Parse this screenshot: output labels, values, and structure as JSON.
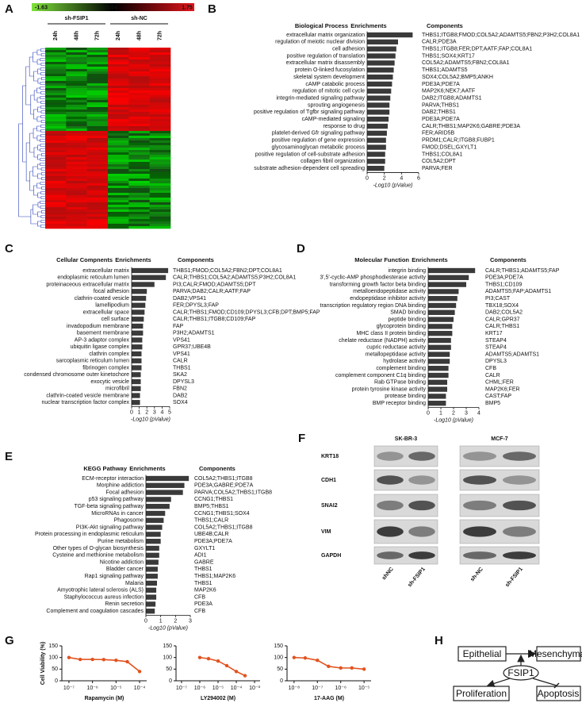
{
  "panel_labels": [
    "A",
    "B",
    "C",
    "D",
    "E",
    "F",
    "G",
    "H"
  ],
  "heatmap": {
    "colorbar_ticks": [
      -1.63,
      0.04,
      1.75
    ],
    "groups": [
      "sh-FSIP1",
      "sh-NC"
    ],
    "timepoints": [
      "24h",
      "48h",
      "72h",
      "24h",
      "48h",
      "72h"
    ]
  },
  "chart_data": [
    {
      "type": "bar",
      "orientation": "horizontal",
      "category_label": "Biological Process",
      "value_label": "Enrichments",
      "components_label": "Components",
      "color": "#3a3a3a",
      "categories": [
        "extracellular matrix organization",
        "regulation of meiotic nuclear division",
        "cell adhesion",
        "positive regulation of translation",
        "extracellular matrix disassembly",
        "protein O-linked fucosylation",
        "skeletal system development",
        "cAMP catabolic process",
        "regulation of mitotic cell cycle",
        "integrin-mediated signaling pathway",
        "sprouting angiogenesis",
        "positive regulation of Tgfbr signaling pathway",
        "cAMP-mediated signaling",
        "response to drug",
        "platelet-derived Gfr signaling pathway",
        "positive regulation of gene expression",
        "glycosaminoglycan metabolic process",
        "positive regulation of cell-substrate adhesion",
        "collagen fibril organization",
        "substrate adhesion-dependent cell spreading"
      ],
      "values": [
        5.3,
        3.6,
        3.4,
        3.3,
        3.2,
        3.1,
        3.0,
        2.9,
        2.8,
        2.7,
        2.6,
        2.6,
        2.5,
        2.4,
        2.3,
        2.2,
        2.2,
        2.1,
        2.1,
        2.0
      ],
      "components": [
        "THBS1;ITGB8;FMOD;COL5A2;ADAMTS5;FBN2;P3H2;COL8A1",
        "CALR;PDE3A",
        "THBS1;ITGB8;FER;DPT;AATF;FAP;COL8A1",
        "THBS1;SOX4;KRT17",
        "COL5A2;ADAMTS5;FBN2;COL8A1",
        "THBS1;ADAMTS5",
        "SOX4;COL5A2;BMP5;ANKH",
        "PDE3A;PDE7A",
        "MAP2K6;NEK7;AATF",
        "DAB2;ITGB8;ADAMTS1",
        "PARVA;THBS1",
        "DAB2;THBS1",
        "PDE3A;PDE7A",
        "CALR;THBS1;MAP2K6;GABRE;PDE3A",
        "FER;ARID5B",
        "PRDM1;CALR;ITGB8;FUBP1",
        "FMOD;DSEL;GXYLT1",
        "THBS1;COL8A1",
        "COL5A2;DPT",
        "PARVA;FER"
      ],
      "xlim": [
        0,
        6
      ],
      "xticks": [
        0,
        2,
        4,
        6
      ],
      "xlabel": "-Log10 (pValue)"
    },
    {
      "type": "bar",
      "orientation": "horizontal",
      "category_label": "Cellular Compnents",
      "value_label": "Enrichments",
      "components_label": "Components",
      "color": "#3a3a3a",
      "categories": [
        "extracellular matrix",
        "endoplasmic reticulum lumen",
        "proteinaceous extracellular matrix",
        "focal adhesion",
        "clathrin-coated vesicle",
        "lamellipodium",
        "extracellular space",
        "cell surface",
        "invadopodium membrane",
        "basement membrane",
        "AP-3 adaptor complex",
        "ubiquitin ligase complex",
        "clathrin complex",
        "sarcoplasmic reticulum lumen",
        "fibrinogen complex",
        "condensed chromosome outer kinetochore",
        "exocytic vesicle",
        "microfibril",
        "clathrin-coated vesicle membrane",
        "nuclear transcription factor complex"
      ],
      "values": [
        4.8,
        4.5,
        3.0,
        2.0,
        1.9,
        1.8,
        1.7,
        1.6,
        1.5,
        1.5,
        1.4,
        1.4,
        1.3,
        1.3,
        1.3,
        1.2,
        1.2,
        1.2,
        1.1,
        1.1
      ],
      "components": [
        "THBS1;FMOD;COL5A2;FBN2;DPT;COL8A1",
        "CALR;THBS1;COL5A2;ADAMTS5;P3H2;COL8A1",
        "PI3;CALR;FMOD;ADAMTS5;DPT",
        "PARVA;DAB2;CALR;AATF;FAP",
        "DAB2;VPS41",
        "FER;DPYSL3;FAP",
        "CALR;THBS1;FMOD;CD109;DPYSL3;CFB;DPT;BMP5;FAP",
        "CALR;THBS1;ITGB8;CD109;FAP",
        "FAP",
        "P3H2;ADAMTS1",
        "VPS41",
        "GPR37;UBE4B",
        "VPS41",
        "CALR",
        "THBS1",
        "SKA2",
        "DPYSL3",
        "FBN2",
        "DAB2",
        "SOX4"
      ],
      "xlim": [
        0,
        5
      ],
      "xticks": [
        0,
        1,
        2,
        3,
        4,
        5
      ],
      "xlabel": "-Log10 (pValue)"
    },
    {
      "type": "bar",
      "orientation": "horizontal",
      "category_label": "Molecular Function",
      "value_label": "Enrichments",
      "components_label": "Components",
      "color": "#3a3a3a",
      "categories": [
        "integrin binding",
        "3',5'-cyclic-AMP phosphodiesterase activity",
        "transforming growth factor beta binding",
        "metalloendopeptidase activity",
        "endopeptidase inhibitor activity",
        "transcription regulatory region DNA binding",
        "SMAD binding",
        "peptide binding",
        "glycoprotein binding",
        "MHC class II protein binding",
        "chelate reductase (NADPH) activity",
        "cupric reductase activity",
        "metallopeptidase activity",
        "hydrolase activity",
        "complement binding",
        "complement component C1q binding",
        "Rab GTPase binding",
        "protein tyrosine kinase activity",
        "protease binding",
        "BMP receptor binding"
      ],
      "values": [
        3.7,
        3.2,
        3.0,
        2.4,
        2.3,
        2.2,
        2.1,
        2.0,
        1.9,
        1.9,
        1.8,
        1.8,
        1.7,
        1.7,
        1.6,
        1.6,
        1.5,
        1.5,
        1.4,
        1.4
      ],
      "components": [
        "CALR;THBS1;ADAMTS5;FAP",
        "PDE3A;PDE7A",
        "THBS1;CD109",
        "ADAMTS5;FAP;ADAMTS1",
        "PI3;CAST",
        "TBX18;SOX4",
        "DAB2;COL5A2",
        "CALR;GPR37",
        "CALR;THBS1",
        "KRT17",
        "STEAP4",
        "STEAP4",
        "ADAMTS5;ADAMTS1",
        "DPYSL3",
        "CFB",
        "CALR",
        "CHML;FER",
        "MAP2K6;FER",
        "CAST;FAP",
        "BMP5"
      ],
      "xlim": [
        0,
        4
      ],
      "xticks": [
        0,
        1,
        2,
        3,
        4
      ],
      "xlabel": "-Log10 (pValue)"
    },
    {
      "type": "bar",
      "orientation": "horizontal",
      "category_label": "KEGG Pathway",
      "value_label": "Enrichments",
      "components_label": "Components",
      "color": "#3a3a3a",
      "categories": [
        "ECM-receptor interaction",
        "Morphine addiction",
        "Focal adhesion",
        "p53 signaling pathway",
        "TGF-beta signaling pathway",
        "MicroRNAs in cancer",
        "Phagosome",
        "PI3K-Akt signaling pathway",
        "Protein processing in endoplasmic reticulum",
        "Purine metabolism",
        "Other types of O-glycan biosynthesis",
        "Cysteine and methionine metabolism",
        "Nicotine addiction",
        "Bladder cancer",
        "Rap1 signaling pathway",
        "Malaria",
        "Amyotrophic lateral sclerosis (ALS)",
        "Staphylococcus aureus infection",
        "Renin secretion",
        "Complement and coagulation cascades"
      ],
      "values": [
        2.9,
        2.6,
        2.5,
        1.7,
        1.6,
        1.3,
        1.2,
        1.1,
        1.0,
        1.0,
        0.9,
        0.9,
        0.85,
        0.8,
        0.8,
        0.75,
        0.7,
        0.7,
        0.65,
        0.6
      ],
      "components": [
        "COL5A2;THBS1;ITGB8",
        "PDE3A;GABRE;PDE7A",
        "PARVA;COL5A2;THBS1;ITGB8",
        "CCNG1;THBS1",
        "BMP5;THBS1",
        "CCNG1;THBS1;SOX4",
        "THBS1;CALR",
        "COL5A2;THBS1;ITGB8",
        "UBE4B;CALR",
        "PDE3A;PDE7A",
        "GXYLT1",
        "ADI1",
        "GABRE",
        "THBS1",
        "THBS1;MAP2K6",
        "THBS1",
        "MAP2K6",
        "CFB",
        "PDE3A",
        "CFB"
      ],
      "xlim": [
        0,
        3
      ],
      "xticks": [
        0,
        1,
        2,
        3
      ],
      "xlabel": "-Log10 (pValue)"
    },
    {
      "type": "scatter",
      "log_x": true,
      "color": "#e2531f",
      "ylabel": "Cell Viability (%)",
      "xlabel": "Rapamycin (M)",
      "x": [
        1e-07,
        3e-07,
        1e-06,
        3e-06,
        1e-05,
        3e-05,
        0.0001
      ],
      "values": [
        100,
        92,
        92,
        91,
        88,
        82,
        40
      ],
      "xlim": [
        5e-08,
        0.0002
      ],
      "xticks": [
        {
          "value": 1e-07,
          "label": "10⁻⁷"
        },
        {
          "value": 1e-06,
          "label": "10⁻⁶"
        },
        {
          "value": 1e-05,
          "label": "10⁻⁵"
        },
        {
          "value": 0.0001,
          "label": "10⁻⁴"
        }
      ],
      "ylim": [
        0,
        150
      ],
      "yticks": [
        0,
        50,
        100,
        150
      ]
    },
    {
      "type": "scatter",
      "log_x": true,
      "color": "#e2531f",
      "xlabel": "LY294002 (M)",
      "x": [
        1e-06,
        3e-06,
        1e-05,
        3e-05,
        0.0001,
        0.0003
      ],
      "values": [
        100,
        95,
        85,
        65,
        40,
        22
      ],
      "xlim": [
        5e-08,
        0.002
      ],
      "xticks": [
        {
          "value": 1e-07,
          "label": "10⁻⁷"
        },
        {
          "value": 1e-06,
          "label": "10⁻⁶"
        },
        {
          "value": 1e-05,
          "label": "10⁻⁵"
        },
        {
          "value": 0.0001,
          "label": "10⁻⁴"
        },
        {
          "value": 0.001,
          "label": "10⁻³"
        }
      ],
      "ylim": [
        0,
        150
      ],
      "yticks": [
        0,
        50,
        100,
        150
      ]
    },
    {
      "type": "scatter",
      "log_x": true,
      "color": "#e2531f",
      "xlabel": "17-AAG (M)",
      "x": [
        1e-08,
        3e-08,
        1e-07,
        3e-07,
        1e-06,
        3e-06,
        1e-05
      ],
      "values": [
        100,
        98,
        88,
        62,
        55,
        55,
        50
      ],
      "xlim": [
        5e-09,
        2e-05
      ],
      "xticks": [
        {
          "value": 1e-08,
          "label": "10⁻⁸"
        },
        {
          "value": 1e-07,
          "label": "10⁻⁷"
        },
        {
          "value": 1e-06,
          "label": "10⁻⁶"
        },
        {
          "value": 1e-05,
          "label": "10⁻⁵"
        }
      ],
      "ylim": [
        0,
        150
      ],
      "yticks": [
        0,
        50,
        100,
        150
      ]
    }
  ],
  "western_blot": {
    "cell_lines": [
      "SK-BR-3",
      "MCF-7"
    ],
    "proteins": [
      "KRT18",
      "CDH1",
      "SNAI2",
      "VIM",
      "GAPDH"
    ],
    "conditions": [
      "shNC",
      "sh-FSIP1",
      "sh-NC",
      "sh-FSIP1"
    ]
  },
  "diagram": {
    "nodes": [
      "Epithelial",
      "Mesenchymal",
      "FSIP1",
      "Proliferation",
      "Apoptosis"
    ]
  }
}
